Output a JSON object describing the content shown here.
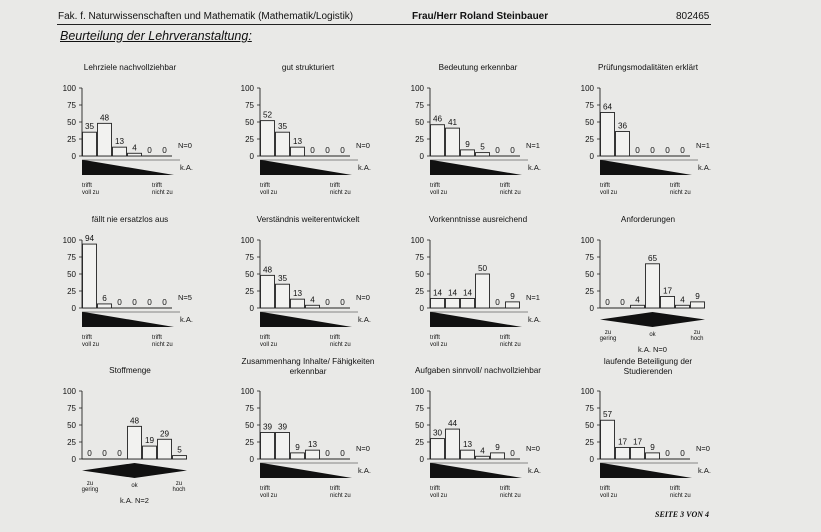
{
  "header": {
    "faculty": "Fak. f. Naturwissenschaften und Mathematik (Mathematik/Logistik)",
    "lecturer": "Frau/Herr Roland Steinbauer",
    "code": "802465"
  },
  "section_title": "Beurteilung der Lehrveranstaltung:",
  "footer": "SEITE 3 VON 4",
  "chart_data": [
    {
      "type": "bar",
      "title": "Lehrziele nachvollziehbar",
      "categories": [
        "1",
        "2",
        "3",
        "4",
        "5",
        "6"
      ],
      "values": [
        35,
        48,
        13,
        4,
        0,
        0
      ],
      "n_label": "N=0",
      "ka_label": "k.A.",
      "scale": "desc",
      "low_label": [
        "trifft",
        "voll zu"
      ],
      "high_label": [
        "trifft",
        "nicht zu"
      ],
      "ylim": [
        0,
        100
      ],
      "yticks": [
        0,
        25,
        50,
        75,
        100
      ]
    },
    {
      "type": "bar",
      "title": "gut strukturiert",
      "categories": [
        "1",
        "2",
        "3",
        "4",
        "5",
        "6"
      ],
      "values": [
        52,
        35,
        13,
        0,
        0,
        0
      ],
      "n_label": "N=0",
      "ka_label": "k.A.",
      "scale": "desc",
      "low_label": [
        "trifft",
        "voll zu"
      ],
      "high_label": [
        "trifft",
        "nicht zu"
      ],
      "ylim": [
        0,
        100
      ],
      "yticks": [
        0,
        25,
        50,
        75,
        100
      ]
    },
    {
      "type": "bar",
      "title": "Bedeutung erkennbar",
      "categories": [
        "1",
        "2",
        "3",
        "4",
        "5",
        "6"
      ],
      "values": [
        46,
        41,
        9,
        5,
        0,
        0
      ],
      "n_label": "N=1",
      "ka_label": "k.A.",
      "scale": "desc",
      "low_label": [
        "trifft",
        "voll zu"
      ],
      "high_label": [
        "trifft",
        "nicht zu"
      ],
      "ylim": [
        0,
        100
      ],
      "yticks": [
        0,
        25,
        50,
        75,
        100
      ]
    },
    {
      "type": "bar",
      "title": "Prüfungsmodalitäten erklärt",
      "categories": [
        "1",
        "2",
        "3",
        "4",
        "5",
        "6"
      ],
      "values": [
        64,
        36,
        0,
        0,
        0,
        0
      ],
      "n_label": "N=1",
      "ka_label": "k.A.",
      "scale": "desc",
      "low_label": [
        "trifft",
        "voll zu"
      ],
      "high_label": [
        "trifft",
        "nicht zu"
      ],
      "ylim": [
        0,
        100
      ],
      "yticks": [
        0,
        25,
        50,
        75,
        100
      ]
    },
    {
      "type": "bar",
      "title": "fällt nie ersatzlos aus",
      "categories": [
        "1",
        "2",
        "3",
        "4",
        "5",
        "6"
      ],
      "values": [
        94,
        6,
        0,
        0,
        0,
        0
      ],
      "n_label": "N=5",
      "ka_label": "k.A.",
      "scale": "desc",
      "low_label": [
        "trifft",
        "voll zu"
      ],
      "high_label": [
        "trifft",
        "nicht zu"
      ],
      "ylim": [
        0,
        100
      ],
      "yticks": [
        0,
        25,
        50,
        75,
        100
      ]
    },
    {
      "type": "bar",
      "title": "Verständnis weiterentwickelt",
      "categories": [
        "1",
        "2",
        "3",
        "4",
        "5",
        "6"
      ],
      "values": [
        48,
        35,
        13,
        4,
        0,
        0
      ],
      "n_label": "N=0",
      "ka_label": "k.A.",
      "scale": "desc",
      "low_label": [
        "trifft",
        "voll zu"
      ],
      "high_label": [
        "trifft",
        "nicht zu"
      ],
      "ylim": [
        0,
        100
      ],
      "yticks": [
        0,
        25,
        50,
        75,
        100
      ]
    },
    {
      "type": "bar",
      "title": "Vorkenntnisse ausreichend",
      "categories": [
        "1",
        "2",
        "3",
        "4",
        "5",
        "6"
      ],
      "values": [
        14,
        14,
        14,
        50,
        0,
        9
      ],
      "n_label": "N=1",
      "ka_label": "k.A.",
      "scale": "desc",
      "low_label": [
        "trifft",
        "voll zu"
      ],
      "high_label": [
        "trifft",
        "nicht zu"
      ],
      "ylim": [
        0,
        100
      ],
      "yticks": [
        0,
        25,
        50,
        75,
        100
      ]
    },
    {
      "type": "bar",
      "title": "Anforderungen",
      "categories": [
        "1",
        "2",
        "3",
        "4",
        "5",
        "6",
        "7"
      ],
      "values": [
        0,
        0,
        4,
        65,
        17,
        4,
        9
      ],
      "n_label": "k.A. N=0",
      "ka_label": "",
      "scale": "mid",
      "low_label": [
        "zu",
        "gering"
      ],
      "mid_label": "ok",
      "high_label": [
        "zu",
        "hoch"
      ],
      "ylim": [
        0,
        100
      ],
      "yticks": [
        0,
        25,
        50,
        75,
        100
      ]
    },
    {
      "type": "bar",
      "title": "Stoffmenge",
      "categories": [
        "1",
        "2",
        "3",
        "4",
        "5",
        "6",
        "7"
      ],
      "values": [
        0,
        0,
        0,
        48,
        19,
        29,
        5
      ],
      "n_label": "k.A. N=2",
      "ka_label": "",
      "scale": "mid",
      "low_label": [
        "zu",
        "gering"
      ],
      "mid_label": "ok",
      "high_label": [
        "zu",
        "hoch"
      ],
      "ylim": [
        0,
        100
      ],
      "yticks": [
        0,
        25,
        50,
        75,
        100
      ]
    },
    {
      "type": "bar",
      "title": "Zusammenhang Inhalte/ Fähigkeiten erkennbar",
      "categories": [
        "1",
        "2",
        "3",
        "4",
        "5",
        "6"
      ],
      "values": [
        39,
        39,
        9,
        13,
        0,
        0
      ],
      "n_label": "N=0",
      "ka_label": "k.A.",
      "scale": "desc",
      "low_label": [
        "trifft",
        "voll zu"
      ],
      "high_label": [
        "trifft",
        "nicht zu"
      ],
      "ylim": [
        0,
        100
      ],
      "yticks": [
        0,
        25,
        50,
        75,
        100
      ]
    },
    {
      "type": "bar",
      "title": "Aufgaben sinnvoll/ nachvollziehbar",
      "categories": [
        "1",
        "2",
        "3",
        "4",
        "5",
        "6"
      ],
      "values": [
        30,
        44,
        13,
        4,
        9,
        0
      ],
      "n_label": "N=0",
      "ka_label": "k.A.",
      "scale": "desc",
      "low_label": [
        "trifft",
        "voll zu"
      ],
      "high_label": [
        "trifft",
        "nicht zu"
      ],
      "ylim": [
        0,
        100
      ],
      "yticks": [
        0,
        25,
        50,
        75,
        100
      ]
    },
    {
      "type": "bar",
      "title": "laufende Beteiligung der Studierenden",
      "categories": [
        "1",
        "2",
        "3",
        "4",
        "5",
        "6"
      ],
      "values": [
        57,
        17,
        17,
        9,
        0,
        0
      ],
      "n_label": "N=0",
      "ka_label": "k.A.",
      "scale": "desc",
      "low_label": [
        "trifft",
        "voll zu"
      ],
      "high_label": [
        "trifft",
        "nicht zu"
      ],
      "ylim": [
        0,
        100
      ],
      "yticks": [
        0,
        25,
        50,
        75,
        100
      ]
    }
  ]
}
